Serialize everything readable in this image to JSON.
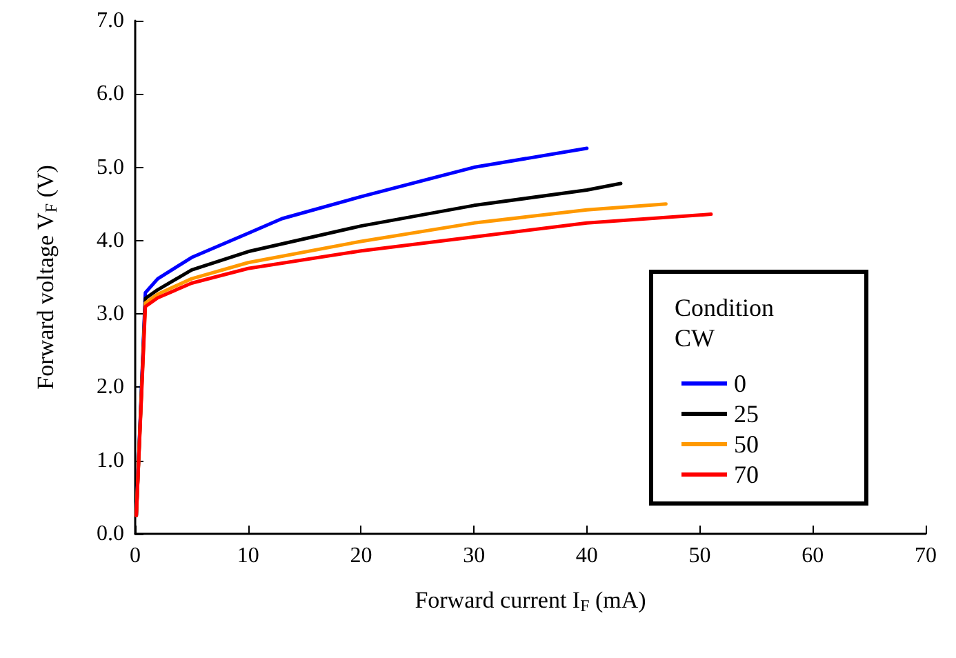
{
  "chart_data": {
    "type": "line",
    "xlabel": "Forward current I$_{F}$ (mA)",
    "ylabel": "Forward voltage V$_{F}$ (V)",
    "legend_title": "Condition\nCW",
    "xlim": [
      0,
      70
    ],
    "xticks": [
      0,
      10,
      20,
      30,
      40,
      50,
      60,
      70
    ],
    "ylim": [
      0,
      7
    ],
    "yticks": [
      {
        "value": 0,
        "label": "0.0"
      },
      {
        "value": 1,
        "label": "1.0"
      },
      {
        "value": 2,
        "label": "2.0"
      },
      {
        "value": 3,
        "label": "3.0"
      },
      {
        "value": 4,
        "label": "4.0"
      },
      {
        "value": 5,
        "label": "5.0"
      },
      {
        "value": 6,
        "label": "6.0"
      },
      {
        "value": 7,
        "label": "7.0"
      }
    ],
    "grid": false,
    "legend": "bottom right",
    "marker": "none",
    "line_style": "solid",
    "series": [
      {
        "name": "0",
        "color": "#0000ff",
        "x": [
          0.1,
          0.9,
          2,
          5,
          10,
          13,
          20,
          30,
          40
        ],
        "values": [
          0.25,
          3.29,
          3.48,
          3.77,
          4.1,
          4.3,
          4.6,
          5.0,
          5.26
        ]
      },
      {
        "name": "25",
        "color": "#000000",
        "x": [
          0.1,
          0.9,
          2,
          5,
          10,
          20,
          30,
          40,
          43
        ],
        "values": [
          0.25,
          3.21,
          3.33,
          3.6,
          3.85,
          4.2,
          4.48,
          4.69,
          4.78
        ]
      },
      {
        "name": "50",
        "color": "#ff9900",
        "x": [
          0.1,
          0.9,
          2,
          5,
          10,
          20,
          30,
          40,
          47
        ],
        "values": [
          0.25,
          3.15,
          3.27,
          3.48,
          3.7,
          3.99,
          4.24,
          4.42,
          4.5
        ]
      },
      {
        "name": "70",
        "color": "#ff0000",
        "x": [
          0.1,
          0.9,
          2,
          5,
          10,
          20,
          30,
          40,
          51
        ],
        "values": [
          0.25,
          3.1,
          3.22,
          3.42,
          3.62,
          3.86,
          4.05,
          4.24,
          4.36
        ]
      }
    ]
  }
}
